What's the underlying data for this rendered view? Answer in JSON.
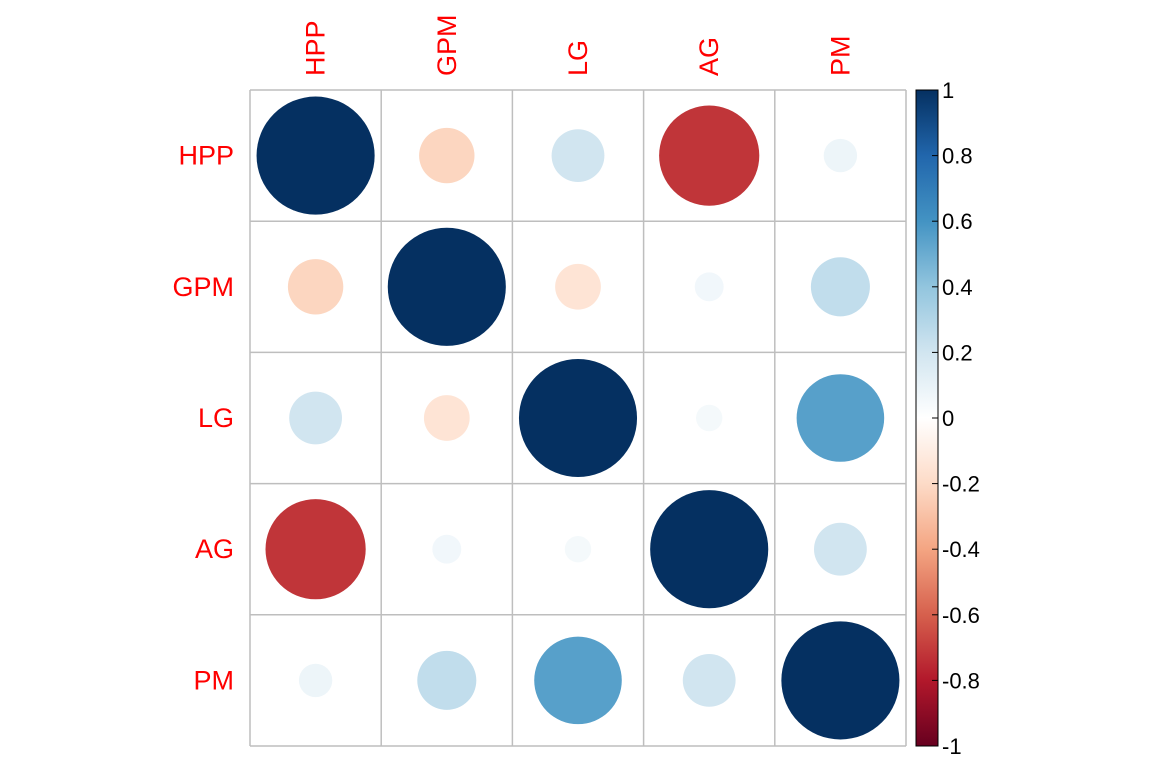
{
  "chart_data": {
    "type": "heatmap",
    "style": "correlation-circles",
    "variables": [
      "HPP",
      "GPM",
      "LG",
      "AG",
      "PM"
    ],
    "matrix": [
      [
        1.0,
        -0.22,
        0.2,
        -0.72,
        0.08
      ],
      [
        -0.22,
        1.0,
        -0.15,
        0.06,
        0.25
      ],
      [
        0.2,
        -0.15,
        1.0,
        0.05,
        0.55
      ],
      [
        -0.72,
        0.06,
        0.05,
        1.0,
        0.2
      ],
      [
        0.08,
        0.25,
        0.55,
        0.2,
        1.0
      ]
    ],
    "color_scale": {
      "limits": [
        -1,
        1
      ],
      "ticks": [
        "1",
        "0.8",
        "0.6",
        "0.4",
        "0.2",
        "0",
        "-0.2",
        "-0.4",
        "-0.6",
        "-0.8",
        "-1"
      ],
      "stops": [
        {
          "value": -1.0,
          "color": "#67001f"
        },
        {
          "value": -0.8,
          "color": "#b2182b"
        },
        {
          "value": -0.6,
          "color": "#d6604d"
        },
        {
          "value": -0.4,
          "color": "#f4a582"
        },
        {
          "value": -0.2,
          "color": "#fddbc7"
        },
        {
          "value": 0.0,
          "color": "#ffffff"
        },
        {
          "value": 0.2,
          "color": "#d1e5f0"
        },
        {
          "value": 0.4,
          "color": "#92c5de"
        },
        {
          "value": 0.6,
          "color": "#4393c3"
        },
        {
          "value": 0.8,
          "color": "#2166ac"
        },
        {
          "value": 1.0,
          "color": "#053061"
        }
      ]
    },
    "label_color": "#ff0000",
    "grid": true,
    "legend_position": "right"
  }
}
